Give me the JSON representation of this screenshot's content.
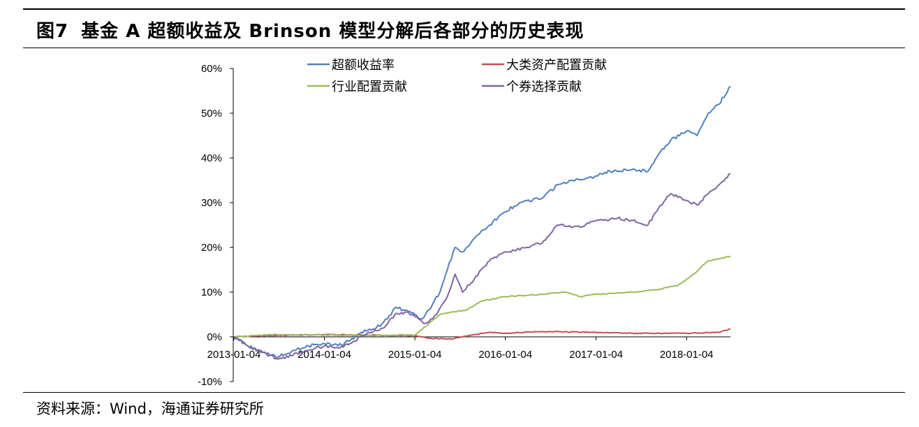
{
  "figure": {
    "number": "图7",
    "title": "基金 A 超额收益及 Brinson 模型分解后各部分的历史表现",
    "source": "资料来源：Wind，海通证券研究所"
  },
  "chart_data": {
    "type": "line",
    "title": "",
    "xlabel": "",
    "ylabel": "",
    "ylim": [
      -0.1,
      0.6
    ],
    "y_ticks": [
      "-10%",
      "0%",
      "10%",
      "20%",
      "30%",
      "40%",
      "50%",
      "60%"
    ],
    "x_ticks": [
      "2013-01-04",
      "2014-01-04",
      "2015-01-04",
      "2016-01-04",
      "2017-01-04",
      "2018-01-04"
    ],
    "xlim": [
      "2013-01-04",
      "2018-06-30"
    ],
    "grid": false,
    "legend": "top",
    "series": [
      {
        "name": "超额收益率",
        "color": "#4F81BD",
        "points": [
          [
            "2013-01-04",
            0.0
          ],
          [
            "2013-03-01",
            -0.02
          ],
          [
            "2013-05-01",
            -0.035
          ],
          [
            "2013-07-01",
            -0.045
          ],
          [
            "2013-09-01",
            -0.03
          ],
          [
            "2013-11-01",
            -0.02
          ],
          [
            "2014-01-04",
            -0.015
          ],
          [
            "2014-03-01",
            -0.02
          ],
          [
            "2014-05-01",
            -0.005
          ],
          [
            "2014-06-15",
            0.015
          ],
          [
            "2014-08-01",
            0.02
          ],
          [
            "2014-09-15",
            0.04
          ],
          [
            "2014-10-15",
            0.065
          ],
          [
            "2014-12-01",
            0.06
          ],
          [
            "2015-01-04",
            0.05
          ],
          [
            "2015-02-01",
            0.04
          ],
          [
            "2015-03-01",
            0.06
          ],
          [
            "2015-04-15",
            0.1
          ],
          [
            "2015-05-15",
            0.15
          ],
          [
            "2015-06-15",
            0.2
          ],
          [
            "2015-07-15",
            0.19
          ],
          [
            "2015-09-01",
            0.22
          ],
          [
            "2015-11-01",
            0.25
          ],
          [
            "2016-01-04",
            0.28
          ],
          [
            "2016-03-01",
            0.3
          ],
          [
            "2016-06-01",
            0.31
          ],
          [
            "2016-08-01",
            0.34
          ],
          [
            "2016-10-01",
            0.35
          ],
          [
            "2016-12-01",
            0.355
          ],
          [
            "2017-01-04",
            0.36
          ],
          [
            "2017-03-01",
            0.37
          ],
          [
            "2017-06-01",
            0.375
          ],
          [
            "2017-08-01",
            0.37
          ],
          [
            "2017-09-15",
            0.41
          ],
          [
            "2017-11-01",
            0.44
          ],
          [
            "2018-01-04",
            0.46
          ],
          [
            "2018-02-15",
            0.45
          ],
          [
            "2018-04-01",
            0.5
          ],
          [
            "2018-05-15",
            0.52
          ],
          [
            "2018-06-30",
            0.56
          ]
        ]
      },
      {
        "name": "大类资产配置贡献",
        "color": "#C0504D",
        "points": [
          [
            "2013-01-04",
            0.0
          ],
          [
            "2013-06-01",
            0.003
          ],
          [
            "2014-01-04",
            0.005
          ],
          [
            "2014-06-01",
            0.004
          ],
          [
            "2015-01-04",
            0.003
          ],
          [
            "2015-03-01",
            -0.003
          ],
          [
            "2015-06-01",
            -0.005
          ],
          [
            "2015-09-01",
            0.005
          ],
          [
            "2015-11-01",
            0.01
          ],
          [
            "2016-01-04",
            0.008
          ],
          [
            "2016-06-01",
            0.012
          ],
          [
            "2017-01-04",
            0.01
          ],
          [
            "2017-06-01",
            0.008
          ],
          [
            "2018-01-04",
            0.008
          ],
          [
            "2018-05-15",
            0.01
          ],
          [
            "2018-06-30",
            0.018
          ]
        ]
      },
      {
        "name": "行业配置贡献",
        "color": "#9BBB59",
        "points": [
          [
            "2013-01-04",
            0.0
          ],
          [
            "2013-06-01",
            0.005
          ],
          [
            "2014-01-04",
            0.004
          ],
          [
            "2014-06-01",
            0.003
          ],
          [
            "2015-01-04",
            0.004
          ],
          [
            "2015-03-01",
            0.03
          ],
          [
            "2015-04-15",
            0.05
          ],
          [
            "2015-06-01",
            0.055
          ],
          [
            "2015-08-01",
            0.06
          ],
          [
            "2015-10-01",
            0.08
          ],
          [
            "2016-01-04",
            0.09
          ],
          [
            "2016-06-01",
            0.095
          ],
          [
            "2016-09-01",
            0.1
          ],
          [
            "2016-11-01",
            0.09
          ],
          [
            "2017-01-04",
            0.095
          ],
          [
            "2017-06-01",
            0.1
          ],
          [
            "2017-09-01",
            0.105
          ],
          [
            "2017-12-01",
            0.115
          ],
          [
            "2018-02-01",
            0.14
          ],
          [
            "2018-04-01",
            0.17
          ],
          [
            "2018-06-30",
            0.18
          ]
        ]
      },
      {
        "name": "个券选择贡献",
        "color": "#8064A2",
        "points": [
          [
            "2013-01-04",
            0.0
          ],
          [
            "2013-03-01",
            -0.02
          ],
          [
            "2013-05-01",
            -0.035
          ],
          [
            "2013-07-01",
            -0.05
          ],
          [
            "2013-09-01",
            -0.04
          ],
          [
            "2013-11-01",
            -0.03
          ],
          [
            "2014-01-04",
            -0.02
          ],
          [
            "2014-03-01",
            -0.025
          ],
          [
            "2014-05-01",
            -0.01
          ],
          [
            "2014-07-01",
            0.01
          ],
          [
            "2014-09-01",
            0.02
          ],
          [
            "2014-10-15",
            0.05
          ],
          [
            "2014-12-01",
            0.055
          ],
          [
            "2015-01-04",
            0.045
          ],
          [
            "2015-02-15",
            0.03
          ],
          [
            "2015-04-01",
            0.05
          ],
          [
            "2015-05-15",
            0.09
          ],
          [
            "2015-06-15",
            0.14
          ],
          [
            "2015-07-15",
            0.1
          ],
          [
            "2015-09-01",
            0.13
          ],
          [
            "2015-11-01",
            0.17
          ],
          [
            "2016-01-04",
            0.19
          ],
          [
            "2016-04-01",
            0.2
          ],
          [
            "2016-06-01",
            0.21
          ],
          [
            "2016-08-01",
            0.25
          ],
          [
            "2016-11-01",
            0.245
          ],
          [
            "2017-01-04",
            0.26
          ],
          [
            "2017-04-01",
            0.265
          ],
          [
            "2017-06-01",
            0.26
          ],
          [
            "2017-08-01",
            0.25
          ],
          [
            "2017-09-15",
            0.29
          ],
          [
            "2017-11-01",
            0.32
          ],
          [
            "2018-01-04",
            0.305
          ],
          [
            "2018-02-15",
            0.295
          ],
          [
            "2018-04-01",
            0.32
          ],
          [
            "2018-05-15",
            0.34
          ],
          [
            "2018-06-30",
            0.365
          ]
        ]
      }
    ]
  }
}
